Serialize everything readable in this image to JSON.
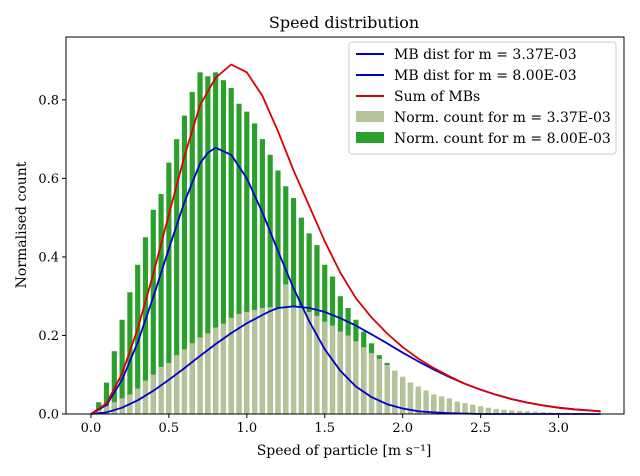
{
  "chart_data": {
    "type": "bar",
    "title": "Speed distribution",
    "xlabel": "Speed of particle [m s⁻¹]",
    "ylabel": "Normalised count",
    "xlim": [
      -0.16,
      3.42
    ],
    "ylim": [
      0,
      0.96
    ],
    "xticks": [
      "0.0",
      "0.5",
      "1.0",
      "1.5",
      "2.0",
      "2.5",
      "3.0"
    ],
    "yticks": [
      "0.0",
      "0.2",
      "0.4",
      "0.6",
      "0.8"
    ],
    "grid": false,
    "legend_location": "top-right",
    "bin_width": 0.0333,
    "histograms": [
      {
        "name": "Norm. count for m = 3.37E-03",
        "color": "#b5c29a",
        "x": [
          0.05,
          0.1,
          0.15,
          0.2,
          0.25,
          0.3,
          0.35,
          0.4,
          0.45,
          0.5,
          0.55,
          0.6,
          0.65,
          0.7,
          0.75,
          0.8,
          0.85,
          0.9,
          0.95,
          1.0,
          1.05,
          1.1,
          1.15,
          1.2,
          1.25,
          1.3,
          1.35,
          1.4,
          1.45,
          1.5,
          1.55,
          1.6,
          1.65,
          1.7,
          1.75,
          1.8,
          1.85,
          1.9,
          1.95,
          2.0,
          2.05,
          2.1,
          2.15,
          2.2,
          2.25,
          2.3,
          2.35,
          2.4,
          2.45,
          2.5,
          2.55,
          2.6,
          2.65,
          2.7,
          2.75,
          2.8,
          2.85,
          2.9,
          2.95,
          3.0,
          3.05,
          3.1,
          3.15,
          3.2
        ],
        "values": [
          0.01,
          0.02,
          0.03,
          0.04,
          0.05,
          0.065,
          0.085,
          0.1,
          0.12,
          0.13,
          0.15,
          0.165,
          0.18,
          0.195,
          0.205,
          0.22,
          0.23,
          0.245,
          0.255,
          0.26,
          0.265,
          0.27,
          0.272,
          0.27,
          0.33,
          0.275,
          0.27,
          0.26,
          0.25,
          0.235,
          0.225,
          0.21,
          0.2,
          0.185,
          0.17,
          0.155,
          0.14,
          0.125,
          0.11,
          0.095,
          0.08,
          0.07,
          0.06,
          0.05,
          0.045,
          0.04,
          0.032,
          0.028,
          0.024,
          0.02,
          0.016,
          0.013,
          0.011,
          0.009,
          0.008,
          0.007,
          0.006,
          0.005,
          0.004,
          0.003,
          0.003,
          0.002,
          0.002,
          0.001
        ]
      },
      {
        "name": "Norm. count for m = 8.00E-03",
        "color": "#2ca02c",
        "x": [
          0.05,
          0.1,
          0.15,
          0.2,
          0.25,
          0.3,
          0.35,
          0.4,
          0.45,
          0.5,
          0.55,
          0.6,
          0.65,
          0.7,
          0.75,
          0.8,
          0.85,
          0.9,
          0.95,
          1.0,
          1.05,
          1.1,
          1.15,
          1.2,
          1.25,
          1.3,
          1.35,
          1.4,
          1.45,
          1.5,
          1.55,
          1.6,
          1.65,
          1.7,
          1.75,
          1.8,
          1.85,
          1.9,
          1.95,
          2.0,
          2.05,
          2.1,
          2.15,
          2.2,
          2.25,
          2.3,
          2.35,
          2.4,
          2.45,
          2.5,
          2.55,
          2.6,
          2.65,
          2.7,
          2.75,
          2.8,
          2.85,
          2.9,
          2.95,
          3.0,
          3.05,
          3.1,
          3.15,
          3.2
        ],
        "values": [
          0.03,
          0.08,
          0.16,
          0.24,
          0.31,
          0.38,
          0.45,
          0.52,
          0.56,
          0.64,
          0.7,
          0.76,
          0.82,
          0.87,
          0.86,
          0.87,
          0.85,
          0.83,
          0.79,
          0.77,
          0.74,
          0.7,
          0.66,
          0.62,
          0.58,
          0.55,
          0.5,
          0.46,
          0.43,
          0.38,
          0.35,
          0.3,
          0.27,
          0.24,
          0.21,
          0.18,
          0.15,
          0.13,
          0.11,
          0.09,
          0.08,
          0.06,
          0.05,
          0.045,
          0.04,
          0.03,
          0.025,
          0.02,
          0.018,
          0.015,
          0.012,
          0.01,
          0.008,
          0.007,
          0.006,
          0.005,
          0.004,
          0.003,
          0.003,
          0.002,
          0.002,
          0.001,
          0.001,
          0.001
        ]
      }
    ],
    "curves": [
      {
        "name": "MB dist for m = 3.37E-03",
        "color": "#0000cc",
        "x": [
          0.0,
          0.1,
          0.2,
          0.3,
          0.4,
          0.5,
          0.6,
          0.7,
          0.8,
          0.9,
          1.0,
          1.1,
          1.15,
          1.2,
          1.3,
          1.4,
          1.5,
          1.6,
          1.7,
          1.8,
          1.9,
          2.0,
          2.1,
          2.2,
          2.3,
          2.4,
          2.5,
          2.6,
          2.7,
          2.8,
          2.9,
          3.0,
          3.1,
          3.2,
          3.27
        ],
        "y": [
          0.0,
          0.004,
          0.016,
          0.035,
          0.059,
          0.087,
          0.117,
          0.148,
          0.178,
          0.206,
          0.231,
          0.252,
          0.262,
          0.27,
          0.274,
          0.27,
          0.26,
          0.244,
          0.225,
          0.203,
          0.18,
          0.156,
          0.134,
          0.113,
          0.094,
          0.077,
          0.062,
          0.049,
          0.038,
          0.029,
          0.022,
          0.016,
          0.012,
          0.009,
          0.007
        ]
      },
      {
        "name": "MB dist for m = 8.00E-03",
        "color": "#0000cc",
        "x": [
          0.0,
          0.1,
          0.2,
          0.3,
          0.4,
          0.5,
          0.6,
          0.7,
          0.75,
          0.8,
          0.9,
          1.0,
          1.1,
          1.2,
          1.3,
          1.4,
          1.5,
          1.6,
          1.7,
          1.8,
          1.9,
          2.0,
          2.1,
          2.2,
          2.3,
          2.5,
          2.7,
          3.0,
          3.27
        ],
        "y": [
          0.0,
          0.023,
          0.087,
          0.182,
          0.298,
          0.421,
          0.54,
          0.638,
          0.665,
          0.678,
          0.66,
          0.6,
          0.513,
          0.415,
          0.32,
          0.236,
          0.165,
          0.11,
          0.07,
          0.043,
          0.025,
          0.014,
          0.007,
          0.004,
          0.002,
          0.0,
          0.0,
          0.0,
          0.0
        ]
      },
      {
        "name": "Sum of MBs",
        "color": "#dd0000",
        "x": [
          0.0,
          0.1,
          0.2,
          0.3,
          0.4,
          0.5,
          0.6,
          0.7,
          0.8,
          0.9,
          1.0,
          1.1,
          1.2,
          1.3,
          1.4,
          1.5,
          1.6,
          1.7,
          1.8,
          1.9,
          2.0,
          2.1,
          2.2,
          2.3,
          2.4,
          2.5,
          2.6,
          2.7,
          2.8,
          2.9,
          3.0,
          3.1,
          3.2,
          3.27
        ],
        "y": [
          0.0,
          0.027,
          0.103,
          0.217,
          0.357,
          0.508,
          0.657,
          0.786,
          0.856,
          0.89,
          0.87,
          0.81,
          0.72,
          0.62,
          0.53,
          0.44,
          0.36,
          0.295,
          0.246,
          0.205,
          0.17,
          0.141,
          0.117,
          0.096,
          0.077,
          0.062,
          0.049,
          0.038,
          0.029,
          0.022,
          0.016,
          0.012,
          0.009,
          0.007
        ]
      }
    ]
  }
}
